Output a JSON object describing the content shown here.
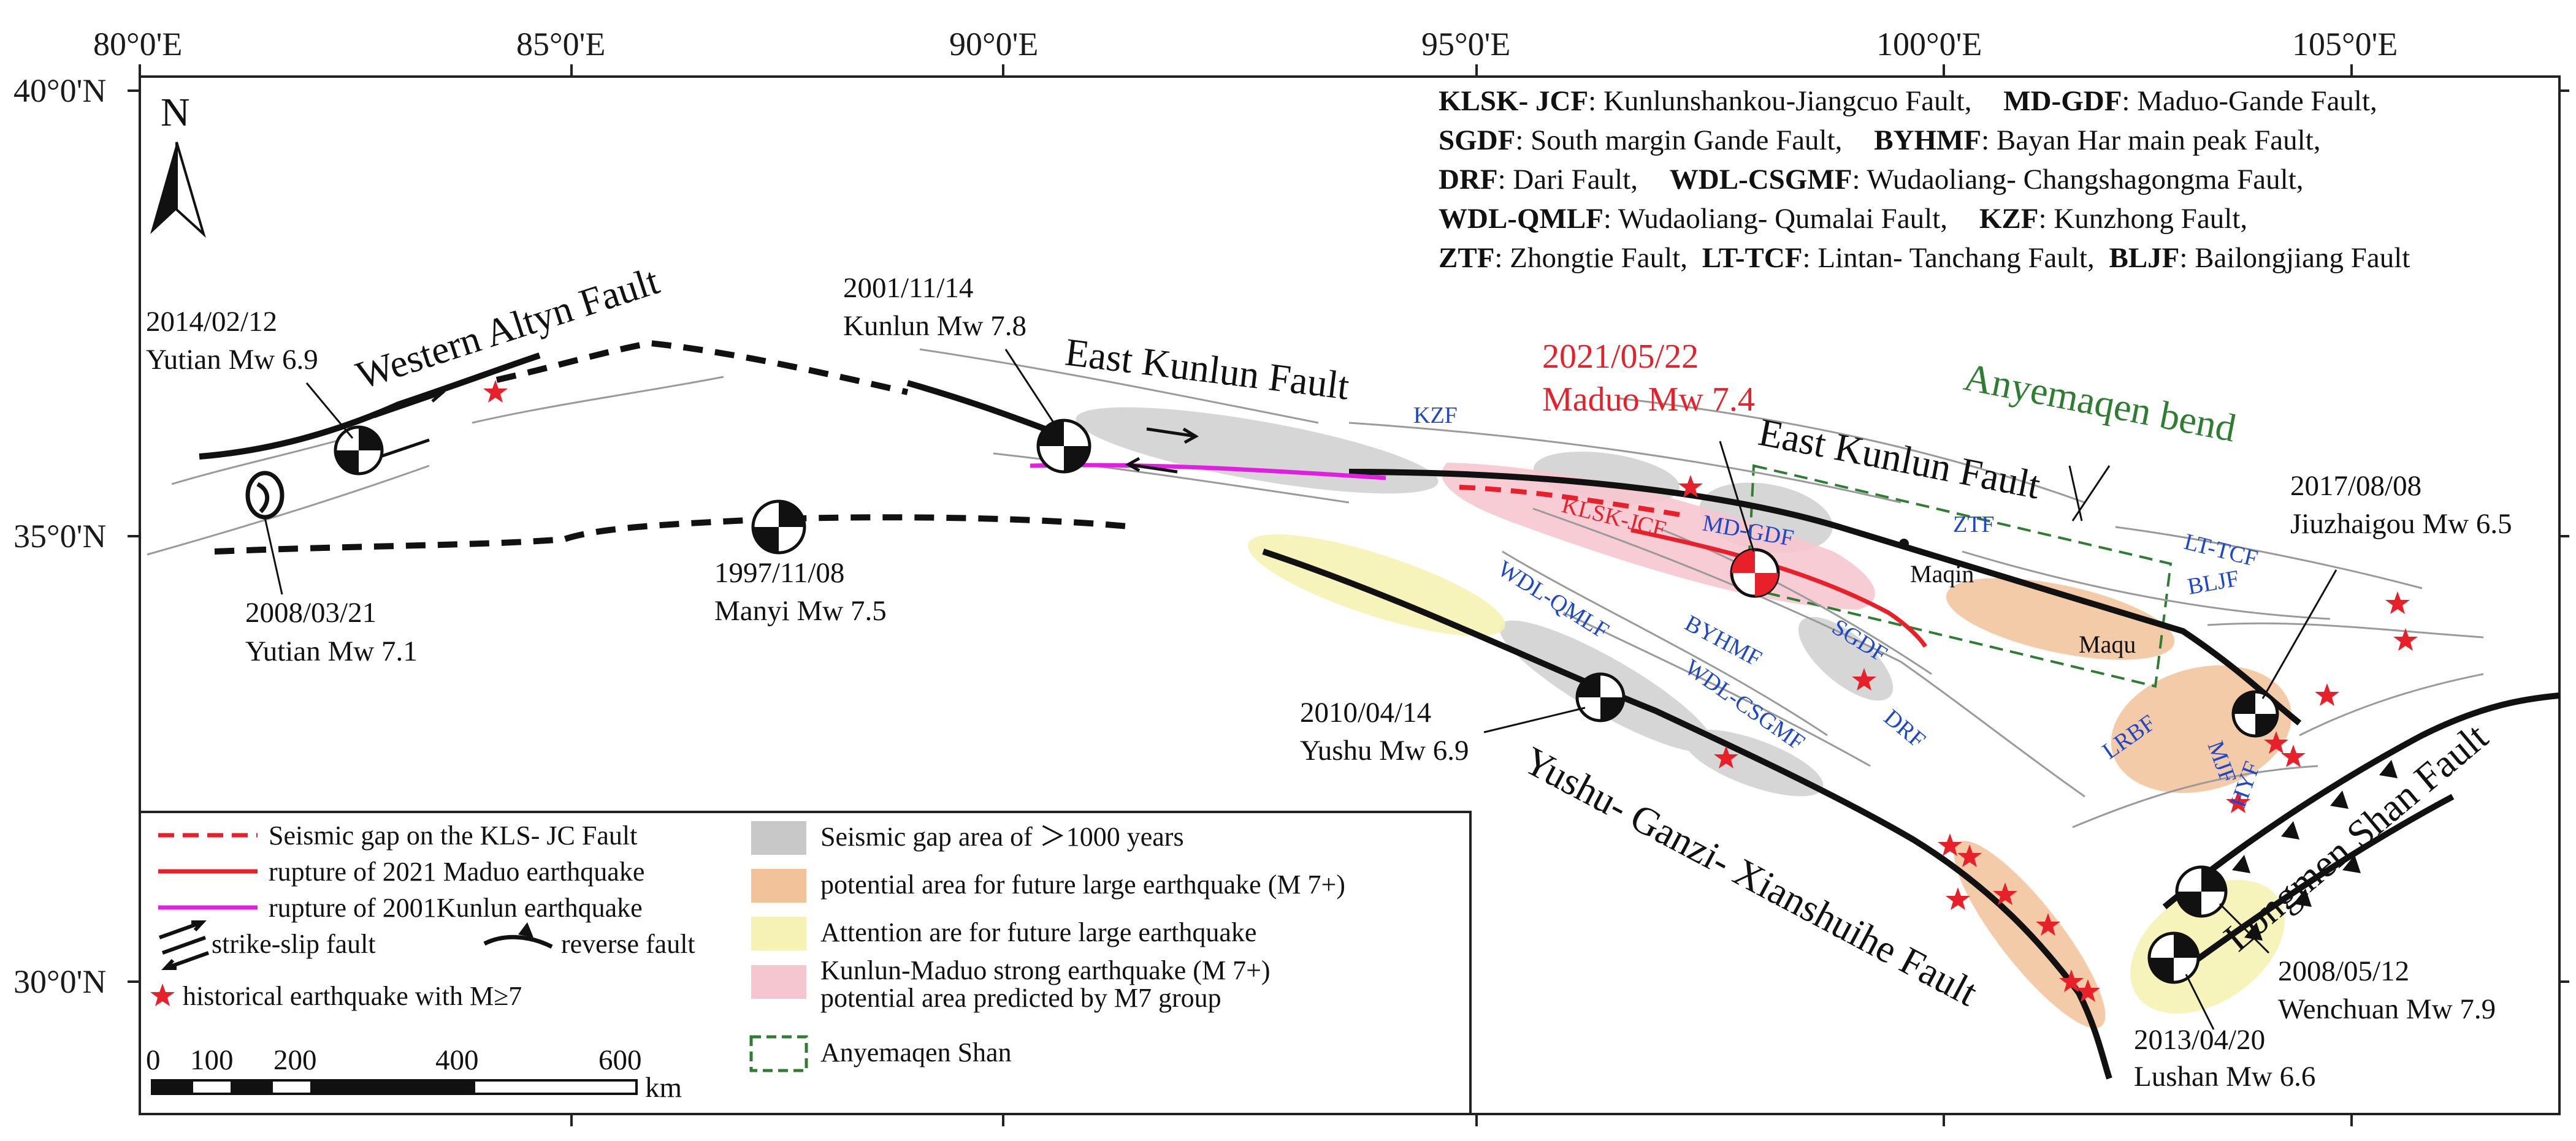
{
  "axes": {
    "lon_ticks": [
      "80°0'E",
      "85°0'E",
      "90°0'E",
      "95°0'E",
      "100°0'E",
      "105°0'E"
    ],
    "lat_ticks": [
      "40°0'N",
      "35°0'N",
      "30°0'N"
    ]
  },
  "north_label": "N",
  "abbr_key": [
    [
      {
        "b": "KLSK- JCF",
        "t": ": Kunlunshankou-Jiangcuo Fault,"
      },
      {
        "b": "MD-GDF",
        "t": ": Maduo-Gande Fault,"
      }
    ],
    [
      {
        "b": "SGDF",
        "t": ": South margin Gande Fault,"
      },
      {
        "b": "BYHMF",
        "t": ": Bayan Har main peak Fault,"
      }
    ],
    [
      {
        "b": "DRF",
        "t": ": Dari Fault,"
      },
      {
        "b": "WDL-CSGMF",
        "t": ": Wudaoliang- Changshagongma Fault,"
      }
    ],
    [
      {
        "b": "WDL-QMLF",
        "t": ": Wudaoliang- Qumalai Fault,"
      },
      {
        "b": "KZF",
        "t": ": Kunzhong Fault,"
      }
    ],
    [
      {
        "b": "ZTF",
        "t": ": Zhongtie Fault,"
      },
      {
        "b": "LT-TCF",
        "t": ": Lintan- Tanchang Fault,"
      },
      {
        "b": "BLJF",
        "t": ": Bailongjiang Fault"
      }
    ]
  ],
  "big_labels": {
    "western_altyn": "Western Altyn Fault",
    "east_kunlun_1": "East Kunlun Fault",
    "east_kunlun_2": "East Kunlun Fault",
    "anyemaqen_bend": "Anyemaqen bend",
    "yushu_ganzi": "Yushu- Ganzi- Xianshuihe Fault",
    "longmen_shan": "Longmen Shan Fault"
  },
  "earthquakes": {
    "yutian_2014_date": "2014/02/12",
    "yutian_2014_name": "Yutian Mw 6.9",
    "yutian_2008_date": "2008/03/21",
    "yutian_2008_name": "Yutian Mw 7.1",
    "kunlun_2001_date": "2001/11/14",
    "kunlun_2001_name": "Kunlun Mw 7.8",
    "manyi_1997_date": "1997/11/08",
    "manyi_1997_name": "Manyi Mw 7.5",
    "maduo_2021_date": "2021/05/22",
    "maduo_2021_name": "Maduo Mw 7.4",
    "yushu_2010_date": "2010/04/14",
    "yushu_2010_name": "Yushu Mw 6.9",
    "jiuzhaigou_2017_date": "2017/08/08",
    "jiuzhaigou_2017_name": "Jiuzhaigou Mw 6.5",
    "wenchuan_2008_date": "2008/05/12",
    "wenchuan_2008_name": "Wenchuan Mw 7.9",
    "lushan_2013_date": "2013/04/20",
    "lushan_2013_name": "Lushan Mw 6.6"
  },
  "fault_labels": {
    "kzf": "KZF",
    "klsk_jcf": "KLSK-JCF",
    "md_gdf": "MD-GDF",
    "ztf": "ZTF",
    "wdl_qmlf": "WDL-QMLF",
    "byhmf": "BYHMF",
    "wdl_csgmf": "WDL-CSGMF",
    "sgdf": "SGDF",
    "drf": "DRF",
    "lt_tcf": "LT-TCF",
    "bljf": "BLJF",
    "lrbf": "LRBF",
    "mjf": "MJF",
    "hyf": "HYF"
  },
  "places": {
    "maqin": "Maqin",
    "maqu": "Maqu"
  },
  "legend": {
    "seismic_gap": "Seismic gap on the KLS- JC Fault",
    "maduo_rupture": "rupture of 2021 Maduo earthquake",
    "kunlun_rupture": "rupture of 2001Kunlun earthquake",
    "strike_slip": "strike-slip fault",
    "reverse": "reverse fault",
    "historical": "historical earthquake with M≥7",
    "gap_area": "Seismic gap area of ＞1000 years",
    "potential": "potential area for future large earthquake (M 7+)",
    "attention": "Attention are for future large earthquake",
    "kunlun_maduo_1": "Kunlun-Maduo strong earthquake (M 7+)",
    "kunlun_maduo_2": "potential area predicted by M7 group",
    "anyemaqen": "Anyemaqen Shan"
  },
  "scale": {
    "ticks": [
      "0",
      "100",
      "200",
      "400",
      "600"
    ],
    "unit": "km"
  },
  "colors": {
    "seismic_gap_line": "#e8202a",
    "maduo_rupture": "#e8202a",
    "kunlun_rupture": "#e020e0",
    "gap_fill": "#c8c8c8",
    "potential_fill": "#f2c29a",
    "attention_fill": "#f5f2b4",
    "kunlun_maduo_fill": "#f6c6d0",
    "anyemaqen_box": "#2e7d32",
    "fault_label": "#1f47c9",
    "star": "#e8202a"
  }
}
